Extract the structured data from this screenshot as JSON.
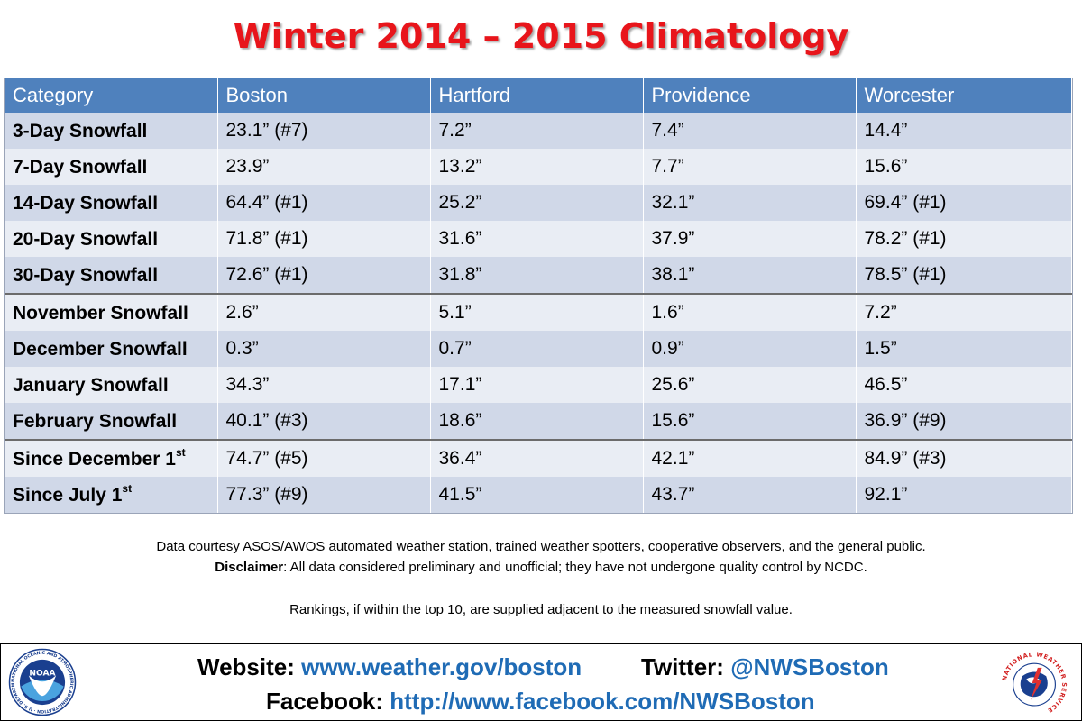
{
  "title": "Winter 2014 – 2015 Climatology",
  "table": {
    "headers": [
      "Category",
      "Boston",
      "Hartford",
      "Providence",
      "Worcester"
    ],
    "rows": [
      {
        "category": "3-Day Snowfall",
        "sup": "",
        "boston": "23.1” (#7)",
        "hartford": "7.2”",
        "providence": "7.4”",
        "worcester": "14.4”"
      },
      {
        "category": "7-Day Snowfall",
        "sup": "",
        "boston": "23.9”",
        "hartford": "13.2”",
        "providence": "7.7”",
        "worcester": "15.6”"
      },
      {
        "category": "14-Day Snowfall",
        "sup": "",
        "boston": "64.4” (#1)",
        "hartford": "25.2”",
        "providence": "32.1”",
        "worcester": "69.4” (#1)"
      },
      {
        "category": "20-Day Snowfall",
        "sup": "",
        "boston": "71.8” (#1)",
        "hartford": "31.6”",
        "providence": "37.9”",
        "worcester": "78.2” (#1)"
      },
      {
        "category": "30-Day Snowfall",
        "sup": "",
        "boston": "72.6” (#1)",
        "hartford": "31.8”",
        "providence": "38.1”",
        "worcester": "78.5” (#1)"
      },
      {
        "category": "November Snowfall",
        "sup": "",
        "boston": "2.6”",
        "hartford": "5.1”",
        "providence": "1.6”",
        "worcester": "7.2”"
      },
      {
        "category": "December Snowfall",
        "sup": "",
        "boston": "0.3”",
        "hartford": "0.7”",
        "providence": "0.9”",
        "worcester": "1.5”"
      },
      {
        "category": "January Snowfall",
        "sup": "",
        "boston": "34.3”",
        "hartford": "17.1”",
        "providence": "25.6”",
        "worcester": "46.5”"
      },
      {
        "category": "February Snowfall",
        "sup": "",
        "boston": "40.1” (#3)",
        "hartford": "18.6”",
        "providence": "15.6”",
        "worcester": "36.9” (#9)"
      },
      {
        "category": "Since December 1",
        "sup": "st",
        "boston": "74.7” (#5)",
        "hartford": "36.4”",
        "providence": "42.1”",
        "worcester": "84.9” (#3)"
      },
      {
        "category": "Since July 1",
        "sup": "st",
        "boston": "77.3” (#9)",
        "hartford": "41.5”",
        "providence": "43.7”",
        "worcester": "92.1”"
      }
    ]
  },
  "notes": {
    "line1": "Data courtesy ASOS/AWOS automated weather station, trained weather spotters, cooperative observers, and the general public.",
    "disclaimer_label": "Disclaimer",
    "disclaimer_text": ": All data considered preliminary and unofficial; they have not undergone quality control by NCDC.",
    "rankings": "Rankings, if within the top 10, are supplied adjacent to the measured snowfall value."
  },
  "footer": {
    "website_label": "Website:",
    "website_value": "www.weather.gov/boston",
    "twitter_label": "Twitter:",
    "twitter_value": "@NWSBoston",
    "facebook_label": "Facebook:",
    "facebook_value": "http://www.facebook.com/NWSBoston",
    "noaa_logo_text": "NOAA",
    "noaa_ring_text": "NATIONAL OCEANIC AND ATMOSPHERIC ADMINISTRATION · U.S. DEPARTMENT OF COMMERCE",
    "nws_ring_text": "NATIONAL WEATHER SERVICE"
  },
  "colors": {
    "title": "#e8151b",
    "header_bg": "#4f81bd",
    "row_odd": "#d0d8e8",
    "row_even": "#e9edf4",
    "link": "#1f6bb5"
  }
}
